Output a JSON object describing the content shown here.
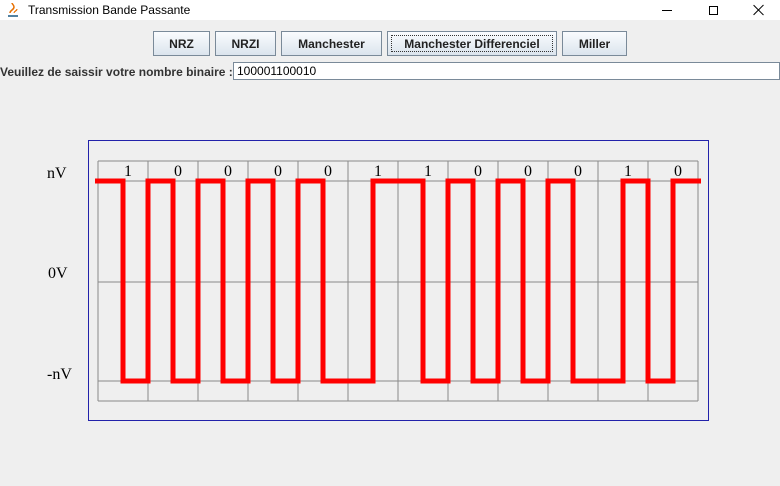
{
  "window": {
    "title": "Transmission Bande Passante"
  },
  "toolbar": {
    "buttons": [
      {
        "label": "NRZ",
        "active": false
      },
      {
        "label": "NRZI",
        "active": false
      },
      {
        "label": "Manchester",
        "active": false
      },
      {
        "label": "Manchester Differenciel",
        "active": true
      },
      {
        "label": "Miller",
        "active": false
      }
    ]
  },
  "input": {
    "label": "Veuillez de saissir votre nombre binaire :",
    "value": "100001100010"
  },
  "chart_data": {
    "type": "line",
    "encoding": "Manchester Differenciel",
    "bits": [
      "1",
      "0",
      "0",
      "0",
      "0",
      "1",
      "1",
      "0",
      "0",
      "0",
      "1",
      "0"
    ],
    "y_labels": [
      "nV",
      "0V",
      "-nV"
    ],
    "levels": [
      1,
      0,
      -1
    ],
    "signal": [
      [
        0,
        1
      ],
      [
        0.5,
        1
      ],
      [
        0.5,
        -1
      ],
      [
        1,
        -1
      ],
      [
        1,
        1
      ],
      [
        1.5,
        1
      ],
      [
        1.5,
        -1
      ],
      [
        2,
        -1
      ],
      [
        2,
        1
      ],
      [
        2.5,
        1
      ],
      [
        2.5,
        -1
      ],
      [
        3,
        -1
      ],
      [
        3,
        1
      ],
      [
        3.5,
        1
      ],
      [
        3.5,
        -1
      ],
      [
        4,
        -1
      ],
      [
        4,
        1
      ],
      [
        4.5,
        1
      ],
      [
        4.5,
        -1
      ],
      [
        5.5,
        -1
      ],
      [
        5.5,
        1
      ],
      [
        6.5,
        1
      ],
      [
        6.5,
        -1
      ],
      [
        7,
        -1
      ],
      [
        7,
        1
      ],
      [
        7.5,
        1
      ],
      [
        7.5,
        -1
      ],
      [
        8,
        -1
      ],
      [
        8,
        1
      ],
      [
        8.5,
        1
      ],
      [
        8.5,
        -1
      ],
      [
        9,
        -1
      ],
      [
        9,
        1
      ],
      [
        9.5,
        1
      ],
      [
        9.5,
        -1
      ],
      [
        10.5,
        -1
      ],
      [
        10.5,
        1
      ],
      [
        11,
        1
      ],
      [
        11,
        -1
      ],
      [
        11.5,
        -1
      ],
      [
        11.5,
        1
      ],
      [
        12,
        1
      ]
    ],
    "signal_color": "#ff0000",
    "grid_color": "#8a8a8a",
    "frame_color": "#2222aa",
    "grid": true
  }
}
